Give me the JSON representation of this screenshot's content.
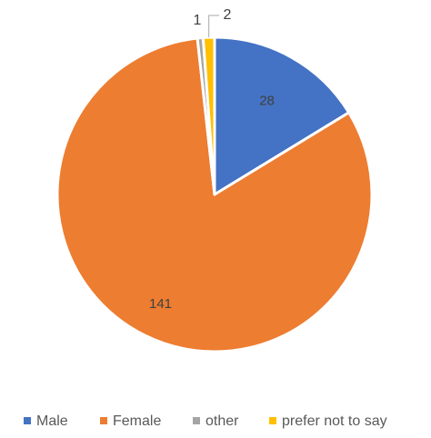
{
  "chart_data": {
    "type": "pie",
    "categories": [
      "Male",
      "Female",
      "other",
      "prefer not to say"
    ],
    "values": [
      28,
      141,
      1,
      2
    ],
    "data_labels": [
      "28",
      "141",
      "1",
      "2"
    ],
    "colors": [
      "#4472C4",
      "#ED7D31",
      "#A5A5A5",
      "#FFC000"
    ],
    "title": "",
    "legend_position": "bottom",
    "start_angle_deg": 0,
    "direction": "clockwise"
  }
}
